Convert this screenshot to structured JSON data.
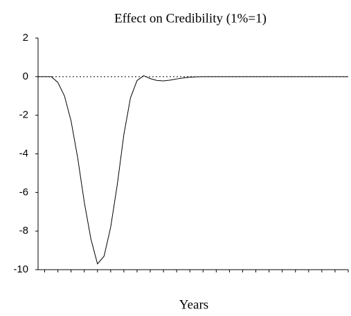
{
  "chart_data": {
    "type": "line",
    "title": "Effect on Credibility (1%=1)",
    "x_label": "Years",
    "categories": [
      null,
      null,
      null,
      null,
      null,
      null,
      null,
      null,
      null,
      null,
      null,
      null,
      null,
      null,
      null,
      null,
      null,
      null,
      null,
      null,
      null,
      null,
      null,
      null,
      null,
      null,
      null,
      null,
      null,
      null,
      null,
      null,
      null,
      null,
      null,
      null,
      null,
      null,
      null,
      null,
      null,
      null,
      null,
      null,
      null,
      null,
      null,
      null
    ],
    "series": [
      {
        "color": "#000000",
        "values": [
          0,
          0,
          0,
          -0.3,
          -1.0,
          -2.3,
          -4.2,
          -6.5,
          -8.4,
          -9.7,
          -9.3,
          -7.8,
          -5.6,
          -3.0,
          -1.1,
          -0.2,
          0.05,
          -0.1,
          -0.2,
          -0.22,
          -0.18,
          -0.12,
          -0.07,
          -0.03,
          -0.01,
          0,
          0,
          0,
          0,
          0,
          0,
          0,
          0,
          0,
          0,
          0,
          0,
          0,
          0,
          0,
          0,
          0,
          0,
          0,
          0,
          0,
          0,
          0
        ]
      }
    ],
    "ylim": [
      -10,
      2
    ],
    "yticks": [
      -10,
      -8,
      -6,
      -4,
      -2,
      0,
      2
    ],
    "reference_line": 0,
    "grid": false
  }
}
